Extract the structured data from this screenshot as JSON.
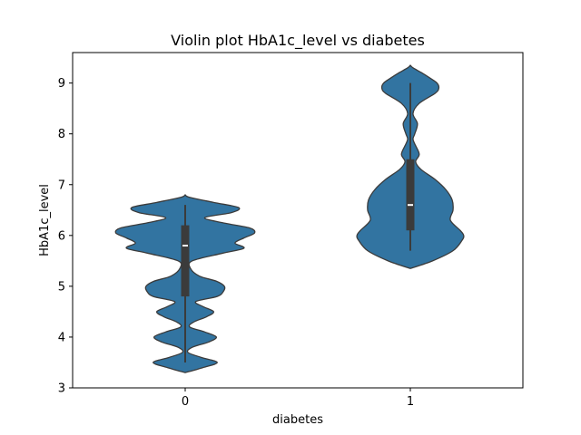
{
  "chart_data": {
    "type": "violin",
    "title": "Violin plot HbA1c_level vs diabetes",
    "xlabel": "diabetes",
    "ylabel": "HbA1c_level",
    "categories": [
      "0",
      "1"
    ],
    "yticks": [
      "3",
      "4",
      "5",
      "6",
      "7",
      "8",
      "9"
    ],
    "ylim": [
      3.0,
      9.6
    ],
    "grid": false,
    "color": "#3274a1",
    "edge_color": "#3b3b3b",
    "violins": [
      {
        "category": "0",
        "min": 3.5,
        "q1": 4.8,
        "median": 5.8,
        "q3": 6.2,
        "max": 6.6,
        "density": [
          [
            3.3,
            0.0
          ],
          [
            3.4,
            0.2
          ],
          [
            3.5,
            0.36
          ],
          [
            3.6,
            0.18
          ],
          [
            3.7,
            0.03
          ],
          [
            3.8,
            0.08
          ],
          [
            3.9,
            0.26
          ],
          [
            4.0,
            0.35
          ],
          [
            4.1,
            0.22
          ],
          [
            4.2,
            0.05
          ],
          [
            4.3,
            0.1
          ],
          [
            4.4,
            0.24
          ],
          [
            4.5,
            0.32
          ],
          [
            4.6,
            0.2
          ],
          [
            4.7,
            0.12
          ],
          [
            4.8,
            0.36
          ],
          [
            4.9,
            0.43
          ],
          [
            5.0,
            0.44
          ],
          [
            5.1,
            0.35
          ],
          [
            5.2,
            0.16
          ],
          [
            5.35,
            0.06
          ],
          [
            5.5,
            0.08
          ],
          [
            5.65,
            0.42
          ],
          [
            5.75,
            0.66
          ],
          [
            5.85,
            0.56
          ],
          [
            5.95,
            0.66
          ],
          [
            6.05,
            0.78
          ],
          [
            6.15,
            0.72
          ],
          [
            6.25,
            0.42
          ],
          [
            6.35,
            0.22
          ],
          [
            6.45,
            0.52
          ],
          [
            6.55,
            0.6
          ],
          [
            6.65,
            0.32
          ],
          [
            6.75,
            0.05
          ],
          [
            6.8,
            0.0
          ]
        ]
      },
      {
        "category": "1",
        "min": 5.7,
        "q1": 6.1,
        "median": 6.6,
        "q3": 7.5,
        "max": 9.0,
        "density": [
          [
            5.35,
            0.0
          ],
          [
            5.5,
            0.25
          ],
          [
            5.7,
            0.48
          ],
          [
            5.9,
            0.58
          ],
          [
            6.0,
            0.6
          ],
          [
            6.1,
            0.56
          ],
          [
            6.3,
            0.45
          ],
          [
            6.5,
            0.48
          ],
          [
            6.7,
            0.47
          ],
          [
            6.9,
            0.4
          ],
          [
            7.1,
            0.28
          ],
          [
            7.3,
            0.12
          ],
          [
            7.45,
            0.06
          ],
          [
            7.6,
            0.1
          ],
          [
            7.8,
            0.05
          ],
          [
            7.9,
            0.03
          ],
          [
            8.0,
            0.05
          ],
          [
            8.2,
            0.08
          ],
          [
            8.4,
            0.03
          ],
          [
            8.6,
            0.1
          ],
          [
            8.8,
            0.28
          ],
          [
            8.9,
            0.32
          ],
          [
            9.0,
            0.3
          ],
          [
            9.1,
            0.22
          ],
          [
            9.2,
            0.13
          ],
          [
            9.3,
            0.03
          ],
          [
            9.35,
            0.0
          ]
        ]
      }
    ]
  }
}
